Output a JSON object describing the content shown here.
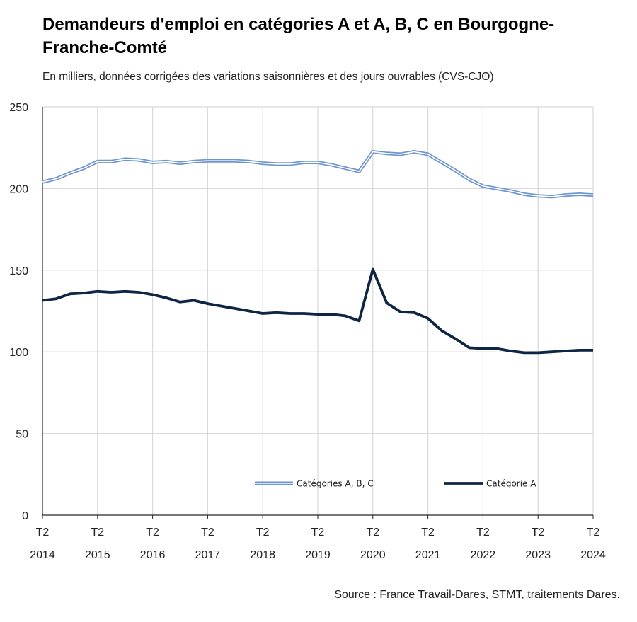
{
  "title": "Demandeurs d'emploi en catégories A et A, B, C en Bourgogne-Franche-Comté",
  "subtitle": "En milliers, données corrigées des variations saisonnières et des jours ouvrables (CVS-CJO)",
  "source": "Source : France Travail-Dares, STMT, traitements Dares.",
  "colors": {
    "abc": "#6f95cf",
    "a": "#0f2544",
    "grid": "#d9d9d9",
    "axis": "#262626"
  },
  "chart_data": {
    "type": "line",
    "xlabel": "",
    "ylabel": "",
    "ylim": [
      0,
      250
    ],
    "y_ticks": [
      0,
      50,
      100,
      150,
      200,
      250
    ],
    "x_ticks": [
      {
        "x": 0,
        "line1": "T2",
        "line2": "2014"
      },
      {
        "x": 4,
        "line1": "T2",
        "line2": "2015"
      },
      {
        "x": 8,
        "line1": "T2",
        "line2": "2016"
      },
      {
        "x": 12,
        "line1": "T2",
        "line2": "2017"
      },
      {
        "x": 16,
        "line1": "T2",
        "line2": "2018"
      },
      {
        "x": 20,
        "line1": "T2",
        "line2": "2019"
      },
      {
        "x": 24,
        "line1": "T2",
        "line2": "2020"
      },
      {
        "x": 28,
        "line1": "T2",
        "line2": "2021"
      },
      {
        "x": 32,
        "line1": "T2",
        "line2": "2022"
      },
      {
        "x": 36,
        "line1": "T2",
        "line2": "2023"
      },
      {
        "x": 40,
        "line1": "T2",
        "line2": "2024"
      }
    ],
    "grid": true,
    "legend_position": "bottom",
    "series": [
      {
        "name": "Catégories A, B, C",
        "style": "double",
        "values": [
          204.0,
          206.0,
          209.5,
          212.5,
          216.5,
          216.5,
          218.0,
          217.5,
          216.0,
          216.5,
          215.5,
          216.5,
          217.0,
          217.0,
          217.0,
          216.5,
          215.5,
          215.0,
          215.0,
          216.0,
          216.0,
          214.5,
          212.5,
          210.5,
          222.5,
          221.5,
          221.0,
          222.5,
          221.0,
          216.0,
          211.0,
          205.5,
          201.5,
          200.0,
          198.5,
          196.5,
          195.5,
          195.0,
          196.0,
          196.5,
          196.0
        ]
      },
      {
        "name": "Catégorie A",
        "style": "solid",
        "values": [
          131.5,
          132.5,
          135.5,
          136.0,
          137.0,
          136.5,
          137.0,
          136.5,
          135.0,
          133.0,
          130.5,
          131.5,
          129.5,
          128.0,
          126.5,
          125.0,
          123.5,
          124.0,
          123.5,
          123.5,
          123.0,
          123.0,
          122.0,
          119.0,
          150.5,
          130.0,
          124.5,
          124.0,
          120.5,
          113.0,
          108.0,
          102.5,
          102.0,
          102.0,
          100.5,
          99.5,
          99.5,
          100.0,
          100.5,
          101.0,
          101.0
        ]
      }
    ]
  }
}
